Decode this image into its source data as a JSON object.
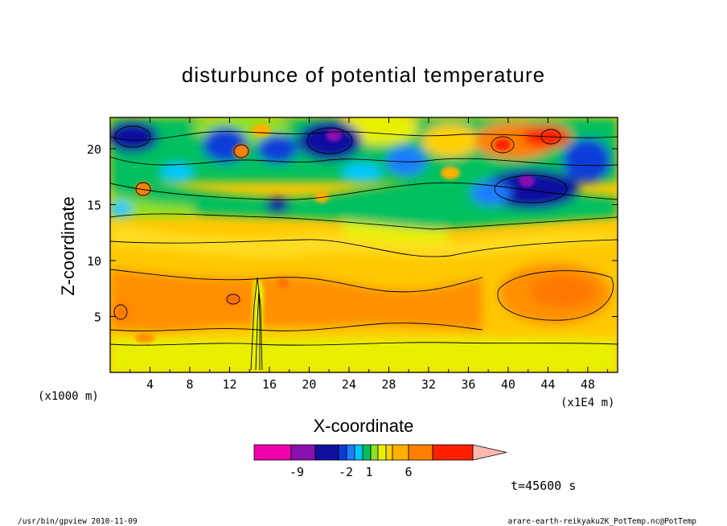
{
  "chart_data": {
    "type": "heatmap",
    "title": "disturbunce of potential temperature",
    "xlabel": "X-coordinate",
    "ylabel": "Z-coordinate",
    "x_unit": "(x1E4 m)",
    "y_unit": "(x1000 m)",
    "xlim": [
      0,
      51
    ],
    "ylim": [
      0,
      22.8
    ],
    "x_ticks": [
      4,
      8,
      12,
      16,
      20,
      24,
      28,
      32,
      36,
      40,
      44,
      48
    ],
    "y_ticks": [
      5,
      10,
      15,
      20
    ],
    "x_tick_labels": [
      "4",
      "8",
      "12",
      "16",
      "20",
      "24",
      "28",
      "32",
      "36",
      "40",
      "44",
      "48"
    ],
    "y_tick_labels": [
      "5",
      "10",
      "15",
      "20"
    ],
    "colorbar": {
      "colors": [
        "#ee00aa",
        "#8a10b0",
        "#1010a0",
        "#0a3cd8",
        "#1e7cff",
        "#00c8ff",
        "#00c060",
        "#90e020",
        "#e8f000",
        "#ffd000",
        "#ffb000",
        "#ff8000",
        "#ff2000",
        "#ff7a70",
        "#ffb8b0"
      ],
      "tick_labels": [
        "-9",
        "-2",
        "1",
        "6"
      ]
    },
    "time_label": "t=45600 s"
  },
  "footer": {
    "left": "/usr/bin/gpview  2010-11-09",
    "right": "arare-earth-reikyaku2K_PotTemp.nc@PotTemp"
  }
}
